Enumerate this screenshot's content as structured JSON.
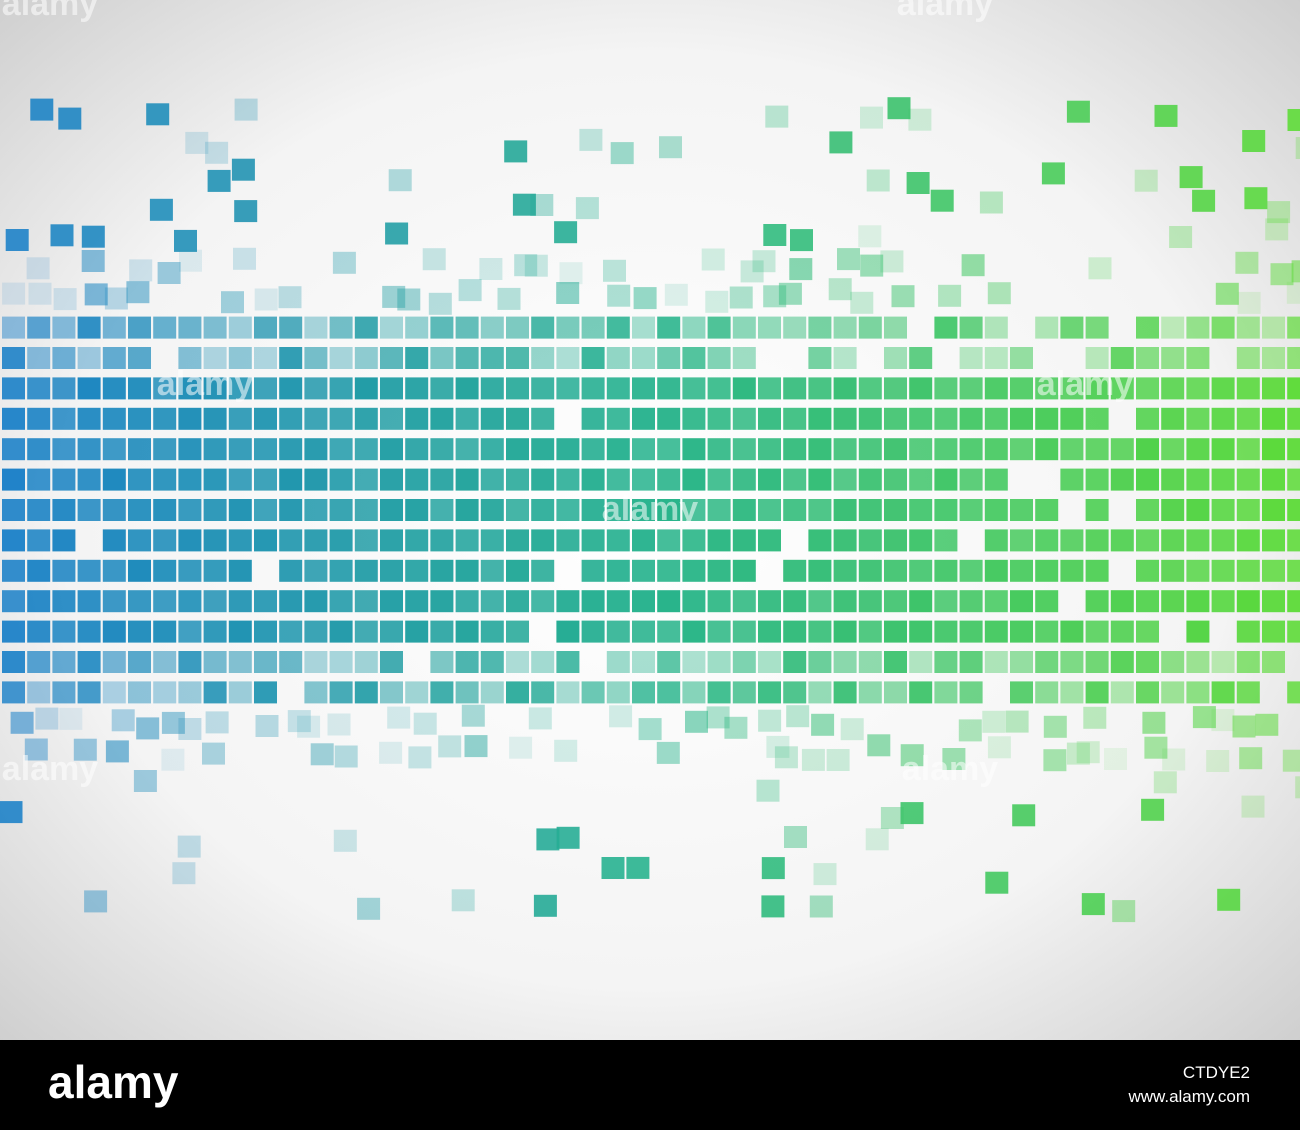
{
  "footer": {
    "logo": "alamy",
    "image_id": "CTDYE2",
    "url": "www.alamy.com"
  }
}
